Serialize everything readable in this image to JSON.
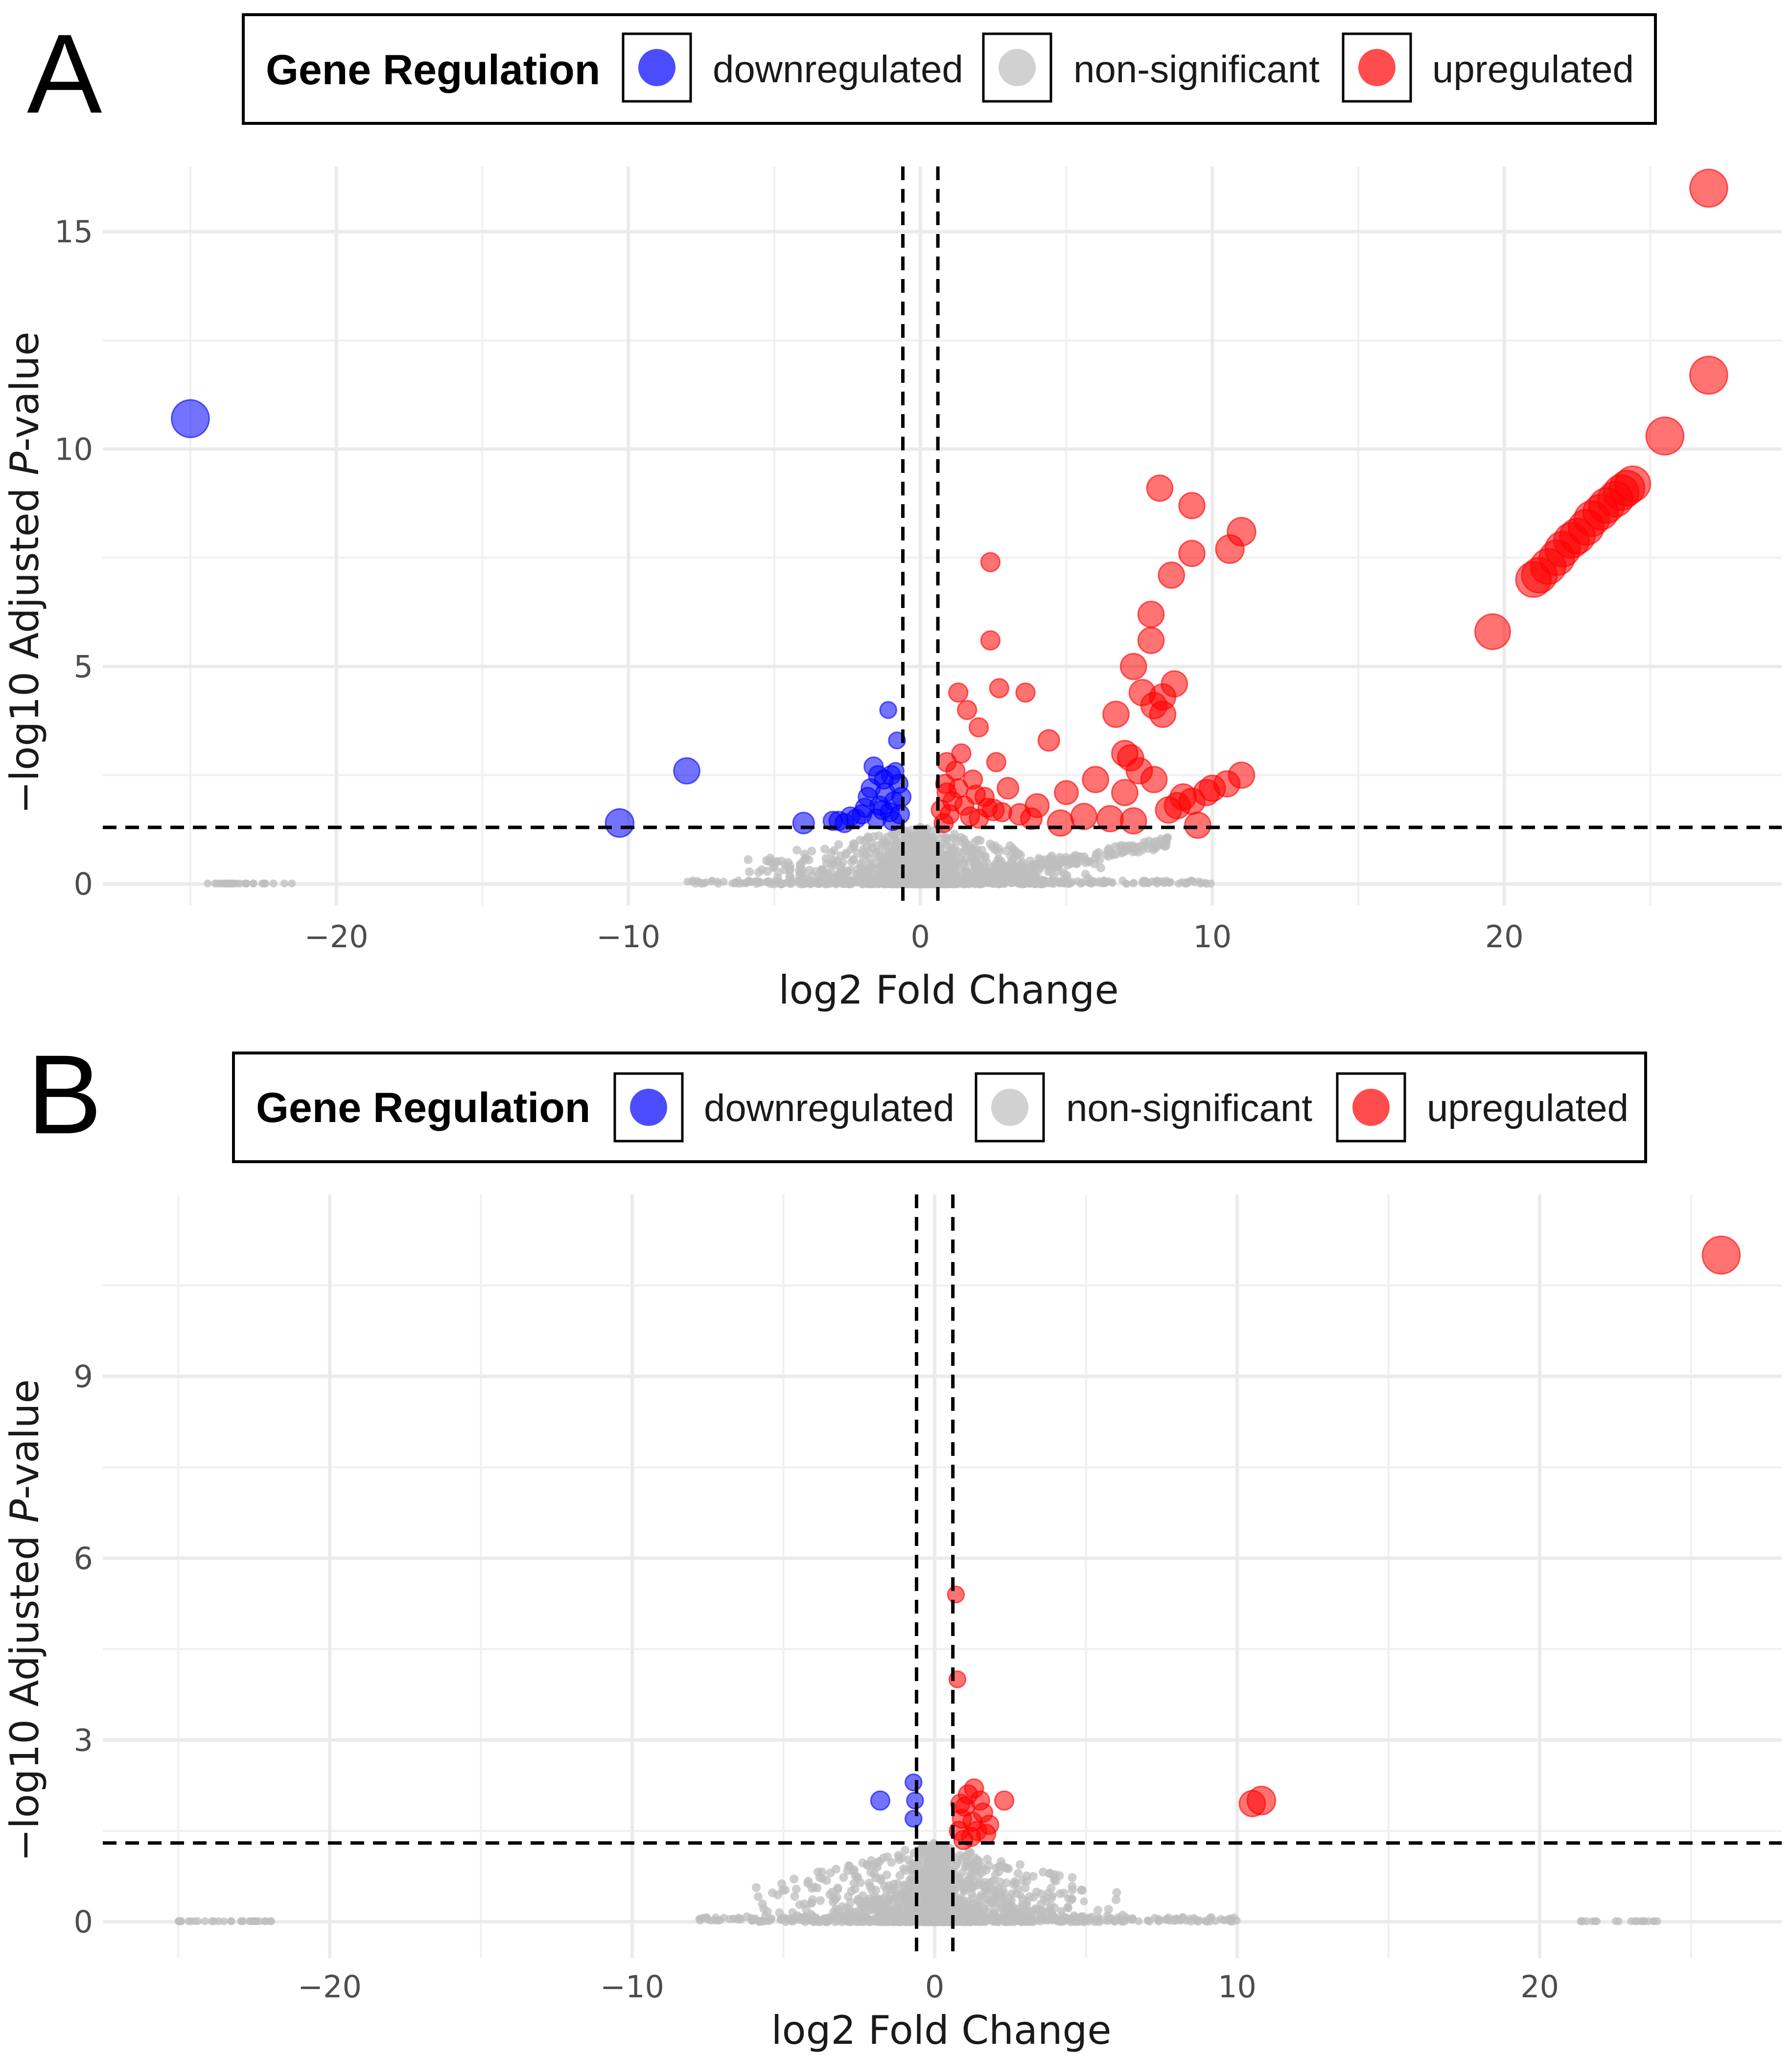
{
  "legend": {
    "title": "Gene Regulation",
    "entries": [
      {
        "label": "downregulated",
        "color": "#0000ff"
      },
      {
        "label": "non-significant",
        "color": "#bebebe"
      },
      {
        "label": "upregulated",
        "color": "#ff0000"
      }
    ]
  },
  "chart_data": [
    {
      "panel": "A",
      "type": "scatter",
      "title": "",
      "xlabel": "log2 Fold Change",
      "ylabel_prefix": "−log10 Adjusted ",
      "ylabel_italic": "P",
      "ylabel_suffix": "-value",
      "xlim": [
        -28,
        29.5
      ],
      "ylim": [
        -0.5,
        16.5
      ],
      "x_ticks": [
        -20,
        -10,
        0,
        10,
        20
      ],
      "x_tick_labels": [
        "−20",
        "−10",
        "0",
        "10",
        "20"
      ],
      "y_ticks": [
        0,
        5,
        10,
        15
      ],
      "y_tick_labels": [
        "0",
        "5",
        "10",
        "15"
      ],
      "vlines": [
        -0.6,
        0.6
      ],
      "hline": 1.3,
      "grid": true,
      "series": [
        {
          "name": "downregulated",
          "color": "#0000ff",
          "points": [
            [
              -25.0,
              10.7,
              16
            ],
            [
              -10.3,
              1.4,
              12
            ],
            [
              -8.0,
              2.6,
              11
            ],
            [
              -4.0,
              1.4,
              9
            ],
            [
              -3.0,
              1.45,
              8
            ],
            [
              -2.6,
              1.4,
              8
            ],
            [
              -2.2,
              1.5,
              8
            ],
            [
              -2.0,
              1.6,
              8
            ],
            [
              -1.8,
              2.0,
              8
            ],
            [
              -1.6,
              2.7,
              8
            ],
            [
              -1.4,
              1.8,
              8
            ],
            [
              -1.2,
              2.1,
              8
            ],
            [
              -1.1,
              4.0,
              7
            ],
            [
              -1.0,
              2.5,
              8
            ],
            [
              -0.9,
              1.9,
              8
            ],
            [
              -0.8,
              3.3,
              7
            ],
            [
              -0.75,
              2.3,
              8
            ],
            [
              -1.5,
              1.5,
              8
            ],
            [
              -1.3,
              1.7,
              8
            ],
            [
              -0.7,
              1.6,
              8
            ],
            [
              -2.4,
              1.55,
              8
            ],
            [
              -1.7,
              2.2,
              8
            ],
            [
              -0.95,
              1.45,
              8
            ],
            [
              -1.25,
              2.4,
              8
            ],
            [
              -0.85,
              2.6,
              7
            ],
            [
              -1.05,
              1.65,
              8
            ],
            [
              -1.45,
              2.5,
              8
            ],
            [
              -0.65,
              2.0,
              8
            ],
            [
              -2.8,
              1.45,
              8
            ],
            [
              -1.9,
              1.75,
              8
            ]
          ]
        },
        {
          "name": "upregulated",
          "color": "#ff0000",
          "points": [
            [
              27.0,
              16.0,
              16
            ],
            [
              27.0,
              11.7,
              16
            ],
            [
              25.5,
              10.3,
              16
            ],
            [
              19.6,
              5.8,
              15
            ],
            [
              21.0,
              7.0,
              15
            ],
            [
              21.5,
              7.3,
              15
            ],
            [
              22.0,
              7.7,
              15
            ],
            [
              22.5,
              8.0,
              15
            ],
            [
              23.0,
              8.4,
              15
            ],
            [
              23.5,
              8.7,
              15
            ],
            [
              24.0,
              9.0,
              15
            ],
            [
              24.4,
              9.2,
              15
            ],
            [
              21.2,
              7.1,
              15
            ],
            [
              21.8,
              7.5,
              15
            ],
            [
              22.3,
              7.9,
              15
            ],
            [
              22.8,
              8.2,
              15
            ],
            [
              23.3,
              8.55,
              15
            ],
            [
              23.8,
              8.85,
              15
            ],
            [
              24.2,
              9.1,
              15
            ],
            [
              8.2,
              9.1,
              11
            ],
            [
              9.3,
              8.7,
              11
            ],
            [
              11.0,
              8.1,
              12
            ],
            [
              9.3,
              7.6,
              11
            ],
            [
              10.6,
              7.7,
              12
            ],
            [
              8.6,
              7.1,
              11
            ],
            [
              2.4,
              7.4,
              8
            ],
            [
              7.9,
              6.2,
              11
            ],
            [
              7.9,
              5.6,
              11
            ],
            [
              7.3,
              5.0,
              11
            ],
            [
              2.4,
              5.6,
              8
            ],
            [
              1.3,
              4.4,
              8
            ],
            [
              2.7,
              4.5,
              8
            ],
            [
              3.6,
              4.4,
              8
            ],
            [
              6.7,
              3.9,
              11
            ],
            [
              7.6,
              4.4,
              11
            ],
            [
              8.3,
              4.3,
              11
            ],
            [
              8.7,
              4.6,
              11
            ],
            [
              8.3,
              3.9,
              11
            ],
            [
              8.0,
              4.1,
              11
            ],
            [
              4.4,
              3.3,
              9
            ],
            [
              2.0,
              3.6,
              8
            ],
            [
              1.6,
              4.0,
              8
            ],
            [
              7.2,
              2.9,
              11
            ],
            [
              7.0,
              3.0,
              11
            ],
            [
              7.5,
              2.6,
              11
            ],
            [
              6.0,
              2.4,
              11
            ],
            [
              8.0,
              2.4,
              11
            ],
            [
              9.0,
              2.0,
              11
            ],
            [
              10.0,
              2.2,
              11
            ],
            [
              11.0,
              2.5,
              11
            ],
            [
              7.0,
              2.1,
              11
            ],
            [
              5.0,
              2.1,
              10
            ],
            [
              4.0,
              1.8,
              10
            ],
            [
              3.0,
              2.2,
              9
            ],
            [
              9.5,
              1.35,
              11
            ],
            [
              6.5,
              1.5,
              11
            ],
            [
              7.3,
              1.45,
              11
            ],
            [
              5.6,
              1.55,
              11
            ],
            [
              4.8,
              1.4,
              11
            ],
            [
              8.5,
              1.7,
              11
            ],
            [
              8.8,
              1.8,
              11
            ],
            [
              9.3,
              1.9,
              11
            ],
            [
              9.8,
              2.1,
              11
            ],
            [
              10.5,
              2.3,
              11
            ],
            [
              3.4,
              1.6,
              9
            ],
            [
              2.5,
              1.7,
              9
            ],
            [
              1.2,
              2.6,
              8
            ],
            [
              0.9,
              2.1,
              8
            ],
            [
              1.5,
              1.8,
              8
            ],
            [
              2.0,
              1.5,
              8
            ],
            [
              1.0,
              1.6,
              8
            ],
            [
              0.8,
              1.4,
              8
            ],
            [
              1.8,
              2.4,
              8
            ],
            [
              2.2,
              2.0,
              8
            ],
            [
              3.8,
              1.5,
              9
            ],
            [
              2.6,
              2.8,
              8
            ],
            [
              1.4,
              3.0,
              8
            ],
            [
              0.9,
              2.8,
              8
            ],
            [
              1.1,
              1.9,
              8
            ],
            [
              1.7,
              1.55,
              8
            ],
            [
              2.3,
              1.75,
              8
            ],
            [
              0.7,
              1.7,
              8
            ],
            [
              0.85,
              2.3,
              8
            ],
            [
              1.3,
              2.2,
              8
            ],
            [
              1.9,
              2.05,
              8
            ],
            [
              2.8,
              1.65,
              8
            ]
          ]
        }
      ]
    },
    {
      "panel": "B",
      "type": "scatter",
      "title": "",
      "xlabel": "log2 Fold Change",
      "ylabel_prefix": "−log10 Adjusted ",
      "ylabel_italic": "P",
      "ylabel_suffix": "-value",
      "xlim": [
        -27.5,
        28
      ],
      "ylim": [
        -0.6,
        12.0
      ],
      "x_ticks": [
        -20,
        -10,
        0,
        10,
        20
      ],
      "x_tick_labels": [
        "−20",
        "−10",
        "0",
        "10",
        "20"
      ],
      "y_ticks": [
        0,
        3,
        6,
        9
      ],
      "y_tick_labels": [
        "0",
        "3",
        "6",
        "9"
      ],
      "vlines": [
        -0.6,
        0.6
      ],
      "hline": 1.3,
      "grid": true,
      "series": [
        {
          "name": "downregulated",
          "color": "#0000ff",
          "points": [
            [
              -1.8,
              2.0,
              8
            ],
            [
              -0.7,
              2.3,
              7
            ],
            [
              -0.65,
              2.0,
              7
            ],
            [
              -0.7,
              1.7,
              7
            ]
          ]
        },
        {
          "name": "upregulated",
          "color": "#ff0000",
          "points": [
            [
              26.0,
              11.0,
              16
            ],
            [
              10.8,
              2.0,
              12
            ],
            [
              10.5,
              1.95,
              11
            ],
            [
              0.7,
              5.4,
              7
            ],
            [
              0.75,
              4.0,
              7
            ],
            [
              1.3,
              2.2,
              8
            ],
            [
              1.5,
              2.0,
              8
            ],
            [
              2.3,
              2.0,
              8
            ],
            [
              1.0,
              1.9,
              8
            ],
            [
              1.8,
              1.6,
              8
            ],
            [
              1.2,
              1.4,
              8
            ],
            [
              0.9,
              1.7,
              8
            ],
            [
              0.8,
              1.5,
              8
            ],
            [
              1.6,
              1.8,
              8
            ],
            [
              1.4,
              1.5,
              8
            ],
            [
              1.1,
              2.1,
              8
            ],
            [
              0.95,
              1.35,
              8
            ],
            [
              1.7,
              1.45,
              8
            ],
            [
              1.25,
              1.65,
              8
            ],
            [
              0.85,
              1.95,
              8
            ]
          ]
        }
      ]
    }
  ]
}
